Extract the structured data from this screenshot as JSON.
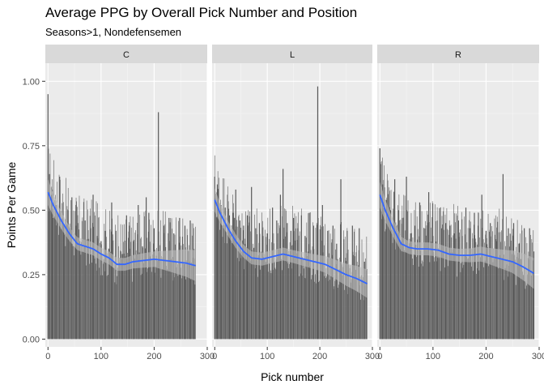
{
  "chart_data": {
    "type": "bar",
    "title": "Average PPG by Overall Pick Number and Position",
    "subtitle": "Seasons>1, Nondefensemen",
    "xlabel": "Pick number",
    "ylabel": "Points Per Game",
    "xlim": [
      -5,
      300
    ],
    "ylim": [
      -0.03,
      1.07
    ],
    "xticks": [
      0,
      100,
      200,
      300
    ],
    "yticks": [
      0.0,
      0.25,
      0.5,
      0.75,
      1.0
    ],
    "ytick_labels": [
      "0.00",
      "0.25",
      "0.50",
      "0.75",
      "1.00"
    ],
    "grid": true,
    "colors": {
      "bars": "#595959",
      "smooth": "#3366FF",
      "ribbon": "#bdbdbd",
      "panel": "#EBEBEB",
      "strip": "#D9D9D9"
    },
    "panels": [
      {
        "name": "C",
        "bar_x_max": 278,
        "bars": [
          [
            0,
            0.95
          ],
          [
            3,
            0.64
          ],
          [
            8,
            0.58
          ],
          [
            15,
            0.52
          ],
          [
            22,
            0.63
          ],
          [
            30,
            0.44
          ],
          [
            38,
            0.5
          ],
          [
            45,
            0.55
          ],
          [
            53,
            0.44
          ],
          [
            60,
            0.38
          ],
          [
            70,
            0.46
          ],
          [
            80,
            0.43
          ],
          [
            85,
            0.56
          ],
          [
            93,
            0.4
          ],
          [
            100,
            0.38
          ],
          [
            108,
            0.42
          ],
          [
            115,
            0.35
          ],
          [
            120,
            0.53
          ],
          [
            128,
            0.42
          ],
          [
            140,
            0.33
          ],
          [
            148,
            0.48
          ],
          [
            153,
            0.44
          ],
          [
            161,
            0.38
          ],
          [
            170,
            0.52
          ],
          [
            178,
            0.36
          ],
          [
            185,
            0.55
          ],
          [
            190,
            0.49
          ],
          [
            200,
            0.43
          ],
          [
            208,
            0.88
          ],
          [
            218,
            0.44
          ],
          [
            228,
            0.47
          ],
          [
            237,
            0.41
          ],
          [
            248,
            0.47
          ],
          [
            258,
            0.44
          ],
          [
            268,
            0.46
          ],
          [
            275,
            0.35
          ]
        ],
        "smooth": [
          [
            0,
            0.57
          ],
          [
            10,
            0.52
          ],
          [
            25,
            0.46
          ],
          [
            40,
            0.41
          ],
          [
            55,
            0.37
          ],
          [
            70,
            0.36
          ],
          [
            85,
            0.35
          ],
          [
            100,
            0.33
          ],
          [
            115,
            0.315
          ],
          [
            130,
            0.29
          ],
          [
            145,
            0.29
          ],
          [
            160,
            0.3
          ],
          [
            180,
            0.305
          ],
          [
            200,
            0.31
          ],
          [
            220,
            0.305
          ],
          [
            240,
            0.3
          ],
          [
            260,
            0.295
          ],
          [
            278,
            0.285
          ]
        ],
        "ribbon_halfwidth": [
          [
            0,
            0.05
          ],
          [
            20,
            0.035
          ],
          [
            50,
            0.025
          ],
          [
            100,
            0.025
          ],
          [
            150,
            0.025
          ],
          [
            200,
            0.03
          ],
          [
            240,
            0.045
          ],
          [
            278,
            0.06
          ]
        ]
      },
      {
        "name": "L",
        "bar_x_max": 290,
        "bars": [
          [
            0,
            0.63
          ],
          [
            5,
            0.6
          ],
          [
            12,
            0.52
          ],
          [
            20,
            0.51
          ],
          [
            28,
            0.48
          ],
          [
            35,
            0.49
          ],
          [
            40,
            0.58
          ],
          [
            48,
            0.46
          ],
          [
            55,
            0.44
          ],
          [
            62,
            0.48
          ],
          [
            70,
            0.59
          ],
          [
            78,
            0.43
          ],
          [
            85,
            0.45
          ],
          [
            92,
            0.4
          ],
          [
            100,
            0.41
          ],
          [
            110,
            0.51
          ],
          [
            118,
            0.46
          ],
          [
            125,
            0.56
          ],
          [
            130,
            0.66
          ],
          [
            138,
            0.45
          ],
          [
            145,
            0.42
          ],
          [
            150,
            0.47
          ],
          [
            158,
            0.43
          ],
          [
            165,
            0.48
          ],
          [
            172,
            0.4
          ],
          [
            180,
            0.49
          ],
          [
            188,
            0.44
          ],
          [
            196,
            0.98
          ],
          [
            205,
            0.52
          ],
          [
            215,
            0.42
          ],
          [
            225,
            0.44
          ],
          [
            232,
            0.37
          ],
          [
            240,
            0.62
          ],
          [
            252,
            0.42
          ],
          [
            262,
            0.44
          ],
          [
            275,
            0.43
          ],
          [
            285,
            0.3
          ]
        ],
        "smooth": [
          [
            0,
            0.54
          ],
          [
            10,
            0.49
          ],
          [
            25,
            0.43
          ],
          [
            40,
            0.38
          ],
          [
            55,
            0.34
          ],
          [
            70,
            0.315
          ],
          [
            90,
            0.31
          ],
          [
            110,
            0.32
          ],
          [
            130,
            0.33
          ],
          [
            150,
            0.32
          ],
          [
            170,
            0.31
          ],
          [
            190,
            0.3
          ],
          [
            210,
            0.29
          ],
          [
            230,
            0.27
          ],
          [
            250,
            0.25
          ],
          [
            270,
            0.235
          ],
          [
            290,
            0.215
          ]
        ],
        "ribbon_halfwidth": [
          [
            0,
            0.045
          ],
          [
            20,
            0.03
          ],
          [
            50,
            0.025
          ],
          [
            100,
            0.025
          ],
          [
            150,
            0.025
          ],
          [
            200,
            0.03
          ],
          [
            240,
            0.04
          ],
          [
            290,
            0.055
          ]
        ]
      },
      {
        "name": "R",
        "bar_x_max": 290,
        "bars": [
          [
            0,
            0.74
          ],
          [
            5,
            0.6
          ],
          [
            12,
            0.54
          ],
          [
            20,
            0.5
          ],
          [
            28,
            0.62
          ],
          [
            35,
            0.5
          ],
          [
            42,
            0.47
          ],
          [
            50,
            0.63
          ],
          [
            58,
            0.41
          ],
          [
            66,
            0.44
          ],
          [
            75,
            0.53
          ],
          [
            83,
            0.43
          ],
          [
            92,
            0.57
          ],
          [
            100,
            0.4
          ],
          [
            108,
            0.46
          ],
          [
            116,
            0.43
          ],
          [
            124,
            0.45
          ],
          [
            132,
            0.44
          ],
          [
            140,
            0.41
          ],
          [
            148,
            0.46
          ],
          [
            155,
            0.4
          ],
          [
            162,
            0.51
          ],
          [
            170,
            0.43
          ],
          [
            178,
            0.49
          ],
          [
            185,
            0.44
          ],
          [
            192,
            0.56
          ],
          [
            200,
            0.42
          ],
          [
            208,
            0.45
          ],
          [
            220,
            0.38
          ],
          [
            232,
            0.64
          ],
          [
            242,
            0.43
          ],
          [
            252,
            0.45
          ],
          [
            262,
            0.37
          ],
          [
            272,
            0.43
          ],
          [
            282,
            0.43
          ],
          [
            290,
            0.34
          ]
        ],
        "smooth": [
          [
            0,
            0.56
          ],
          [
            10,
            0.5
          ],
          [
            25,
            0.43
          ],
          [
            40,
            0.37
          ],
          [
            55,
            0.355
          ],
          [
            70,
            0.35
          ],
          [
            90,
            0.35
          ],
          [
            110,
            0.345
          ],
          [
            130,
            0.33
          ],
          [
            150,
            0.325
          ],
          [
            170,
            0.325
          ],
          [
            190,
            0.33
          ],
          [
            210,
            0.32
          ],
          [
            230,
            0.31
          ],
          [
            250,
            0.3
          ],
          [
            270,
            0.28
          ],
          [
            290,
            0.255
          ]
        ],
        "ribbon_halfwidth": [
          [
            0,
            0.05
          ],
          [
            20,
            0.035
          ],
          [
            50,
            0.025
          ],
          [
            100,
            0.025
          ],
          [
            150,
            0.025
          ],
          [
            200,
            0.03
          ],
          [
            240,
            0.04
          ],
          [
            290,
            0.06
          ]
        ]
      }
    ]
  }
}
